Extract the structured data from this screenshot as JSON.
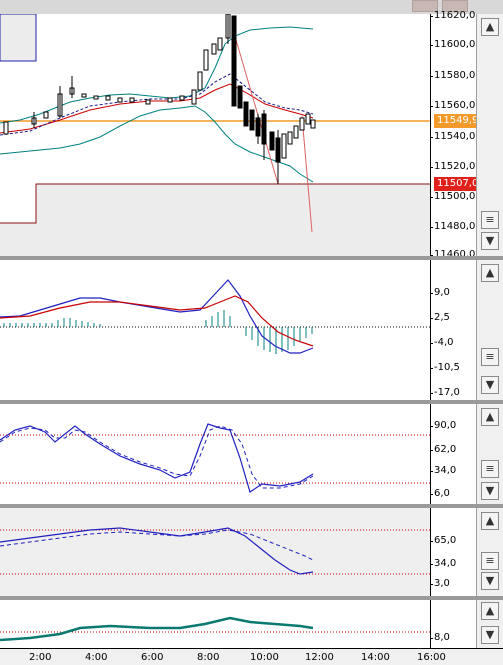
{
  "window": {
    "buttons": [
      "minimize-button",
      "maximize-button"
    ]
  },
  "price_pane": {
    "ticks": [
      "11620,0",
      "11600,0",
      "11580,0",
      "11560,0",
      "11540,0",
      "11520,0",
      "11500,0",
      "11480,0",
      "11460,0"
    ],
    "current_price": "11549,9",
    "level_price": "11507,0",
    "colors": {
      "current": "#f39a2a",
      "level": "#e0201a",
      "candle": "#000000",
      "upper_band": "#008080",
      "ma_red": "#cc0000"
    }
  },
  "macd_pane": {
    "ticks": [
      "9,0",
      "2,5",
      "-4,0",
      "-10,5",
      "-17,0"
    ]
  },
  "stoch1_pane": {
    "ticks": [
      "90,0",
      "62,0",
      "34,0",
      "6,0"
    ]
  },
  "stoch2_pane": {
    "ticks": [
      "65,0",
      "34,0",
      "3,0"
    ]
  },
  "osc_pane": {
    "ticks": [
      "8,0"
    ]
  },
  "time_axis": {
    "labels": [
      "2:00",
      "4:00",
      "6:00",
      "8:00",
      "10:00",
      "12:00",
      "14:00",
      "16:00"
    ]
  },
  "scroll_icons": {
    "up": "▲",
    "down": "▼",
    "menu": "≡"
  }
}
